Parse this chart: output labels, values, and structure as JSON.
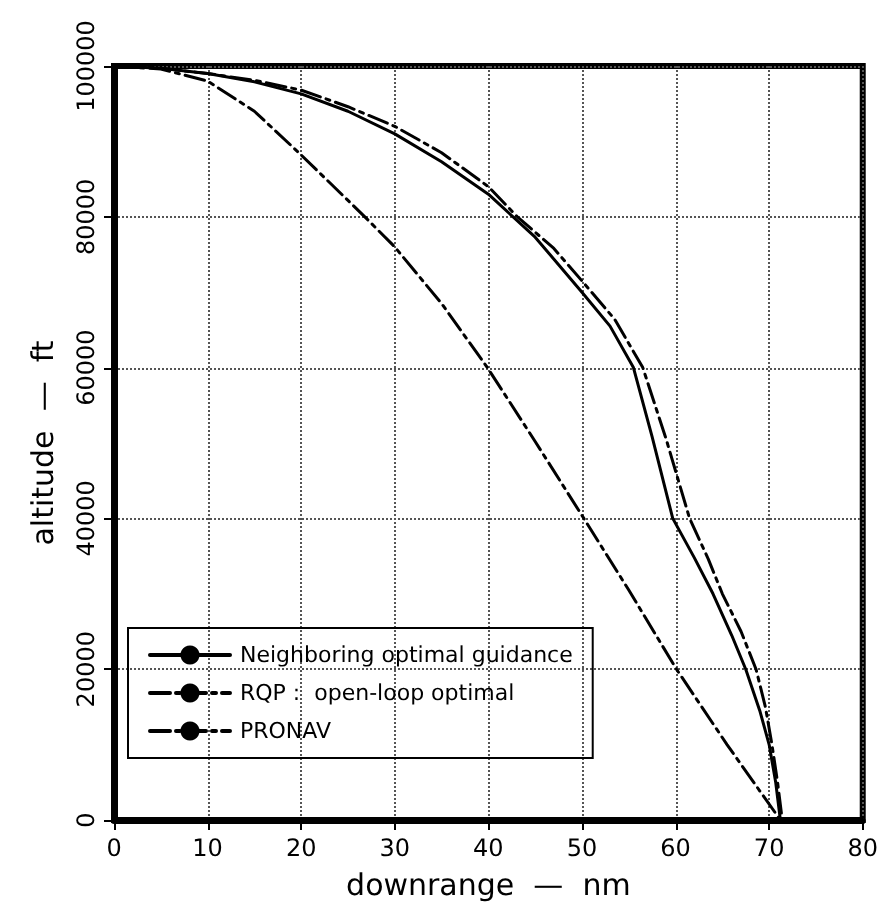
{
  "chart_data": {
    "type": "line",
    "xlabel": "downrange  —  nm",
    "ylabel": "altitude  —  ft",
    "xlim": [
      0,
      80
    ],
    "xticks": [
      0,
      10,
      20,
      30,
      40,
      50,
      60,
      70,
      80
    ],
    "ylim": [
      0,
      100000
    ],
    "yticks": [
      0,
      20000,
      40000,
      60000,
      80000,
      100000
    ],
    "grid": true,
    "legend": "bottom left",
    "marker": "none",
    "series": [
      {
        "name": "Neighboring optimal guidance",
        "color": "#000000",
        "line_style": "solid",
        "x": [
          0,
          5,
          10,
          15,
          20,
          25,
          30,
          35,
          40,
          45,
          50,
          53,
          55.5,
          57.5,
          59.7,
          62,
          64,
          66,
          67.5,
          69,
          70,
          70.7,
          71.2
        ],
        "values": [
          100000,
          99700,
          99000,
          97900,
          96300,
          94000,
          91000,
          87300,
          83000,
          77300,
          70000,
          65500,
          60000,
          50800,
          40000,
          34800,
          30000,
          24500,
          20000,
          14500,
          10000,
          5000,
          0
        ]
      },
      {
        "name": "RQP :  open-loop optimal",
        "color": "#000000",
        "line_style": "dashed",
        "x": [
          1,
          5,
          10,
          15,
          20,
          25,
          30,
          35,
          40,
          43.1,
          47,
          50,
          53.5,
          56.5,
          59,
          61.5,
          63.5,
          65,
          67,
          68.6,
          69.6,
          70.3,
          70.9,
          71.4
        ],
        "values": [
          100000,
          99700,
          99000,
          98100,
          96800,
          94600,
          92000,
          88500,
          84000,
          80000,
          75800,
          71500,
          66400,
          60000,
          50500,
          40000,
          34600,
          30000,
          25000,
          20000,
          15000,
          10000,
          5000,
          0
        ]
      },
      {
        "name": "PRONAV",
        "color": "#000000",
        "line_style": "dashed",
        "x": [
          0,
          5,
          10,
          15,
          20,
          26.8,
          30,
          35,
          39.9,
          45,
          50.2,
          55,
          60.1,
          65.5,
          71.2
        ],
        "values": [
          100000,
          99600,
          98000,
          94000,
          88200,
          80000,
          76000,
          68500,
          60000,
          50200,
          40000,
          30500,
          20000,
          10000,
          0
        ]
      }
    ]
  }
}
